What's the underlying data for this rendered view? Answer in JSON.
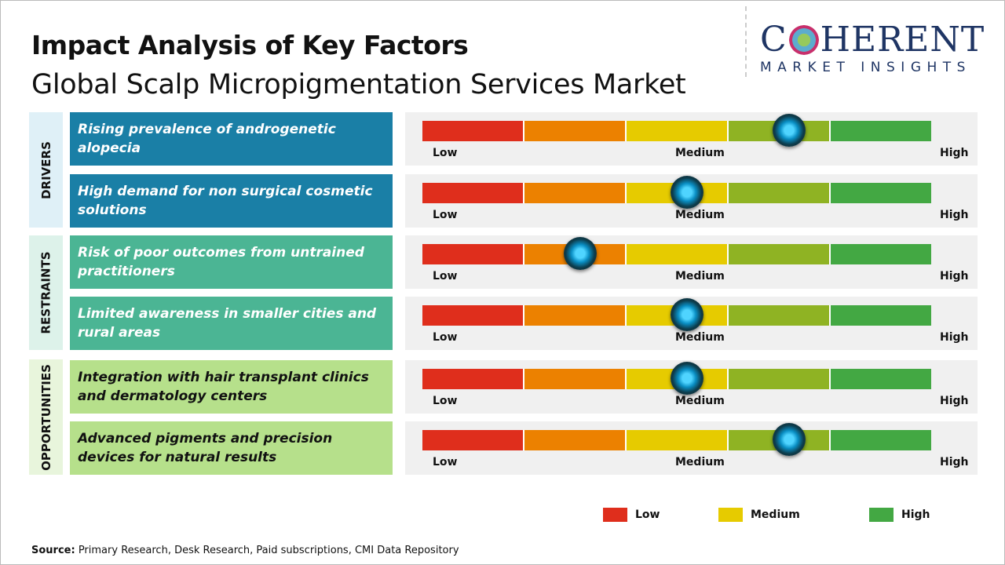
{
  "title": "Impact Analysis of Key Factors",
  "subtitle": "Global Scalp Micropigmentation Services Market",
  "logo": {
    "main_left": "C",
    "main_right": "HERENT",
    "sub": "MARKET INSIGHTS"
  },
  "colors": {
    "low": "#df2e1c",
    "medium_low": "#ec8100",
    "medium": "#e6cb00",
    "medium_high": "#8fb323",
    "high": "#43a843",
    "drivers": "#1a7fa6",
    "restraints": "#4bb594",
    "opportunities": "#b6e08b"
  },
  "scale_labels": {
    "low": "Low",
    "medium": "Medium",
    "high": "High"
  },
  "chart_data": {
    "type": "gauge",
    "scale": [
      "Low",
      "Medium",
      "High"
    ],
    "categories": [
      {
        "name": "DRIVERS",
        "factors": [
          {
            "label": "Rising prevalence of androgenetic alopecia",
            "impact": 0.72
          },
          {
            "label": "High demand for non surgical cosmetic solutions",
            "impact": 0.52
          }
        ]
      },
      {
        "name": "RESTRAINTS",
        "factors": [
          {
            "label": "Risk of poor outcomes from untrained practitioners",
            "impact": 0.31
          },
          {
            "label": "Limited awareness in smaller cities and rural areas",
            "impact": 0.52
          }
        ]
      },
      {
        "name": "OPPORTUNITIES",
        "factors": [
          {
            "label": "Integration with hair transplant clinics and dermatology centers",
            "impact": 0.52
          },
          {
            "label": "Advanced pigments and precision devices for natural results",
            "impact": 0.72
          }
        ]
      }
    ]
  },
  "legend": [
    {
      "label": "Low",
      "color": "#df2e1c"
    },
    {
      "label": "Medium",
      "color": "#e6cb00"
    },
    {
      "label": "High",
      "color": "#43a843"
    }
  ],
  "source": {
    "label": "Source:",
    "text": " Primary Research, Desk Research, Paid subscriptions, CMI Data Repository"
  }
}
